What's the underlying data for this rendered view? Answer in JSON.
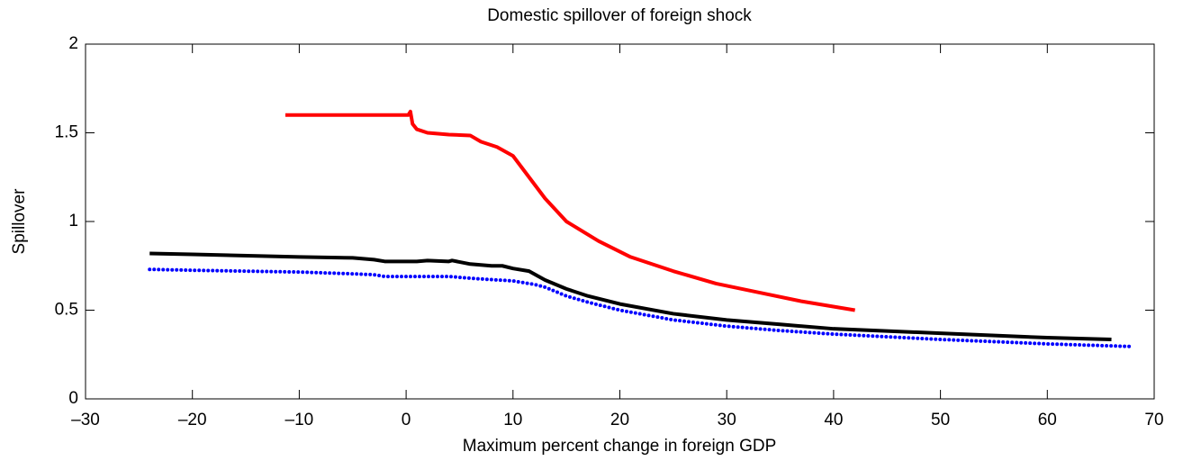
{
  "chart_data": {
    "type": "line",
    "title": "Domestic spillover of foreign shock",
    "xlabel": "Maximum percent change in foreign GDP",
    "ylabel": "Spillover",
    "xlim": [
      -30,
      70
    ],
    "xticks": [
      {
        "value": -30,
        "label": "–30"
      },
      {
        "value": -20,
        "label": "–20"
      },
      {
        "value": -10,
        "label": "–10"
      },
      0,
      10,
      20,
      30,
      40,
      50,
      60,
      70
    ],
    "ylim": [
      0,
      2
    ],
    "yticks": [
      0,
      0.5,
      1,
      1.5,
      2
    ],
    "series": [
      {
        "color": "#ff0000",
        "style": "solid",
        "x": [
          -11.3,
          0.2,
          0.4,
          0.6,
          1,
          2,
          4,
          6,
          7,
          8.5,
          10,
          11.5,
          13,
          15,
          18,
          21,
          25,
          29,
          33,
          37,
          42
        ],
        "values": [
          1.6,
          1.6,
          1.62,
          1.55,
          1.52,
          1.5,
          1.49,
          1.485,
          1.45,
          1.42,
          1.37,
          1.25,
          1.13,
          1.0,
          0.89,
          0.8,
          0.72,
          0.65,
          0.6,
          0.55,
          0.5
        ]
      },
      {
        "color": "#000000",
        "style": "solid",
        "x": [
          -24,
          -20,
          -10,
          -5,
          -3,
          -2,
          1,
          2,
          4,
          4.3,
          6,
          8,
          9,
          10,
          11.5,
          13,
          15,
          17,
          20,
          25,
          30,
          35,
          40,
          50,
          60,
          66
        ],
        "values": [
          0.82,
          0.815,
          0.8,
          0.795,
          0.785,
          0.775,
          0.775,
          0.78,
          0.775,
          0.78,
          0.76,
          0.75,
          0.75,
          0.735,
          0.72,
          0.67,
          0.62,
          0.58,
          0.535,
          0.48,
          0.445,
          0.42,
          0.395,
          0.37,
          0.345,
          0.335
        ]
      },
      {
        "color": "#0000ff",
        "style": "dotted",
        "x": [
          -24,
          -20,
          -10,
          -5,
          -3,
          -2,
          4,
          6,
          10,
          12,
          13,
          15,
          17,
          20,
          25,
          30,
          35,
          40,
          50,
          60,
          68
        ],
        "values": [
          0.73,
          0.725,
          0.715,
          0.705,
          0.7,
          0.69,
          0.69,
          0.68,
          0.665,
          0.645,
          0.63,
          0.58,
          0.545,
          0.5,
          0.445,
          0.41,
          0.385,
          0.365,
          0.335,
          0.31,
          0.295
        ]
      }
    ]
  }
}
